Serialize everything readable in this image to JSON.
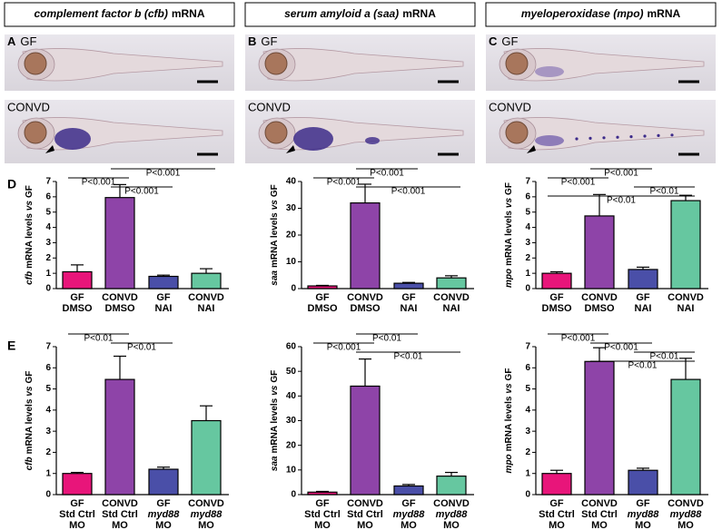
{
  "headers": [
    {
      "italic": "complement factor b (cfb)",
      "plain": "mRNA"
    },
    {
      "italic": "serum amyloid a (saa)",
      "plain": "mRNA"
    },
    {
      "italic": "myeloperoxidase (mpo)",
      "plain": "mRNA"
    }
  ],
  "panels": [
    {
      "letter": "A",
      "label": "GF"
    },
    {
      "letter": "B",
      "label": "GF"
    },
    {
      "letter": "C",
      "label": "GF"
    },
    {
      "label": "CONVD"
    },
    {
      "label": "CONVD"
    },
    {
      "label": "CONVD"
    }
  ],
  "rows": [
    "D",
    "E"
  ],
  "chart_data": [
    {
      "type": "bar",
      "ylabel": [
        {
          "text": "cfb",
          "italic": true
        },
        {
          "text": "mRNA levels",
          "italic": false
        },
        {
          "text": "vs",
          "italic": true
        },
        {
          "text": "GF",
          "italic": false
        }
      ],
      "categories": [
        [
          "GF",
          "DMSO"
        ],
        [
          "CONVD",
          "DMSO"
        ],
        [
          "GF",
          "NAI"
        ],
        [
          "CONVD",
          "NAI"
        ]
      ],
      "values": [
        1.1,
        5.95,
        0.8,
        1.0
      ],
      "errors": [
        0.45,
        0.85,
        0.08,
        0.3
      ],
      "colors": [
        "#e8157a",
        "#8e44a8",
        "#4a4fa8",
        "#66c7a0"
      ],
      "ylim": [
        0,
        7
      ],
      "yticks": [
        0,
        1,
        2,
        3,
        4,
        5,
        6,
        7
      ],
      "brackets": [
        {
          "label": "P<0.001",
          "from": 1,
          "to": 3
        },
        {
          "label": "P<0.001",
          "from": 0,
          "to": 1
        },
        {
          "label": "P<0.001",
          "from": 1,
          "to": 2
        }
      ]
    },
    {
      "type": "bar",
      "ylabel": [
        {
          "text": "saa",
          "italic": true
        },
        {
          "text": "mRNA levels",
          "italic": false
        },
        {
          "text": "vs",
          "italic": true
        },
        {
          "text": "GF",
          "italic": false
        }
      ],
      "categories": [
        [
          "GF",
          "DMSO"
        ],
        [
          "CONVD",
          "DMSO"
        ],
        [
          "GF",
          "NAI"
        ],
        [
          "CONVD",
          "NAI"
        ]
      ],
      "values": [
        1.0,
        32,
        2.0,
        4.0
      ],
      "errors": [
        0.2,
        7,
        0.3,
        0.8
      ],
      "colors": [
        "#e8157a",
        "#8e44a8",
        "#4a4fa8",
        "#66c7a0"
      ],
      "ylim": [
        0,
        40
      ],
      "yticks": [
        0,
        10,
        20,
        30,
        40
      ],
      "brackets": [
        {
          "label": "P<0.001",
          "from": 1,
          "to": 2
        },
        {
          "label": "P<0.001",
          "from": 0,
          "to": 1
        },
        {
          "label": "P<0.001",
          "from": 1,
          "to": 3
        }
      ]
    },
    {
      "type": "bar",
      "ylabel": [
        {
          "text": "mpo",
          "italic": true
        },
        {
          "text": "mRNA levels",
          "italic": false
        },
        {
          "text": "vs",
          "italic": true
        },
        {
          "text": "GF",
          "italic": false
        }
      ],
      "categories": [
        [
          "GF",
          "DMSO"
        ],
        [
          "CONVD",
          "DMSO"
        ],
        [
          "GF",
          "NAI"
        ],
        [
          "CONVD",
          "NAI"
        ]
      ],
      "values": [
        1.0,
        4.75,
        1.25,
        5.75
      ],
      "errors": [
        0.1,
        1.4,
        0.15,
        0.35
      ],
      "colors": [
        "#e8157a",
        "#8e44a8",
        "#4a4fa8",
        "#66c7a0"
      ],
      "ylim": [
        0,
        7
      ],
      "yticks": [
        0,
        1,
        2,
        3,
        4,
        5,
        6,
        7
      ],
      "brackets": [
        {
          "label": "P<0.001",
          "from": 1,
          "to": 2
        },
        {
          "label": "P<0.001",
          "from": 0,
          "to": 1
        },
        {
          "label": "P<0.01",
          "from": 2,
          "to": 3
        },
        {
          "label": "P<0.01",
          "from": 0,
          "to": 3
        }
      ]
    },
    {
      "type": "bar",
      "ylabel": [
        {
          "text": "cfb",
          "italic": true
        },
        {
          "text": "mRNA levels",
          "italic": false
        },
        {
          "text": "vs",
          "italic": true
        },
        {
          "text": "GF",
          "italic": false
        }
      ],
      "categories": [
        [
          "GF",
          "Std Ctrl",
          "MO"
        ],
        [
          "CONVD",
          "Std Ctrl",
          "MO"
        ],
        [
          "GF",
          "myd88",
          "MO"
        ],
        [
          "CONVD",
          "myd88",
          "MO"
        ]
      ],
      "values": [
        1.0,
        5.45,
        1.2,
        3.5
      ],
      "errors": [
        0.05,
        1.1,
        0.1,
        0.7
      ],
      "colors": [
        "#e8157a",
        "#8e44a8",
        "#4a4fa8",
        "#66c7a0"
      ],
      "ylim": [
        0,
        7
      ],
      "yticks": [
        0,
        1,
        2,
        3,
        4,
        5,
        6,
        7
      ],
      "brackets": [
        {
          "label": "P<0.01",
          "from": 0,
          "to": 1
        },
        {
          "label": "P<0.01",
          "from": 1,
          "to": 2
        }
      ]
    },
    {
      "type": "bar",
      "ylabel": [
        {
          "text": "saa",
          "italic": true
        },
        {
          "text": "mRNA levels",
          "italic": false
        },
        {
          "text": "vs",
          "italic": true
        },
        {
          "text": "GF",
          "italic": false
        }
      ],
      "categories": [
        [
          "GF",
          "Std Ctrl",
          "MO"
        ],
        [
          "CONVD",
          "Std Ctrl",
          "MO"
        ],
        [
          "GF",
          "myd88",
          "MO"
        ],
        [
          "CONVD",
          "myd88",
          "MO"
        ]
      ],
      "values": [
        1.0,
        44,
        3.5,
        7.5
      ],
      "errors": [
        0.3,
        11,
        0.6,
        1.5
      ],
      "colors": [
        "#e8157a",
        "#8e44a8",
        "#4a4fa8",
        "#66c7a0"
      ],
      "ylim": [
        0,
        60
      ],
      "yticks": [
        0,
        10,
        20,
        30,
        40,
        50,
        60
      ],
      "brackets": [
        {
          "label": "P<0.01",
          "from": 1,
          "to": 2
        },
        {
          "label": "P<0.001",
          "from": 0,
          "to": 1
        },
        {
          "label": "P<0.01",
          "from": 1,
          "to": 3
        }
      ]
    },
    {
      "type": "bar",
      "ylabel": [
        {
          "text": "mpo",
          "italic": true
        },
        {
          "text": "mRNA levels",
          "italic": false
        },
        {
          "text": "vs",
          "italic": true
        },
        {
          "text": "GF",
          "italic": false
        }
      ],
      "categories": [
        [
          "GF",
          "Std Ctrl",
          "MO"
        ],
        [
          "CONVD",
          "Std Ctrl",
          "MO"
        ],
        [
          "GF",
          "myd88",
          "MO"
        ],
        [
          "CONVD",
          "myd88",
          "MO"
        ]
      ],
      "values": [
        1.0,
        6.3,
        1.15,
        5.45
      ],
      "errors": [
        0.15,
        0.65,
        0.1,
        1.0
      ],
      "colors": [
        "#e8157a",
        "#8e44a8",
        "#4a4fa8",
        "#66c7a0"
      ],
      "ylim": [
        0,
        7
      ],
      "yticks": [
        0,
        1,
        2,
        3,
        4,
        5,
        6,
        7
      ],
      "brackets": [
        {
          "label": "P<0.001",
          "from": 0,
          "to": 1
        },
        {
          "label": "P<0.001",
          "from": 1,
          "to": 2
        },
        {
          "label": "P<0.01",
          "from": 2,
          "to": 3
        },
        {
          "label": "P<0.01",
          "from": 1,
          "to": 3
        }
      ]
    }
  ]
}
